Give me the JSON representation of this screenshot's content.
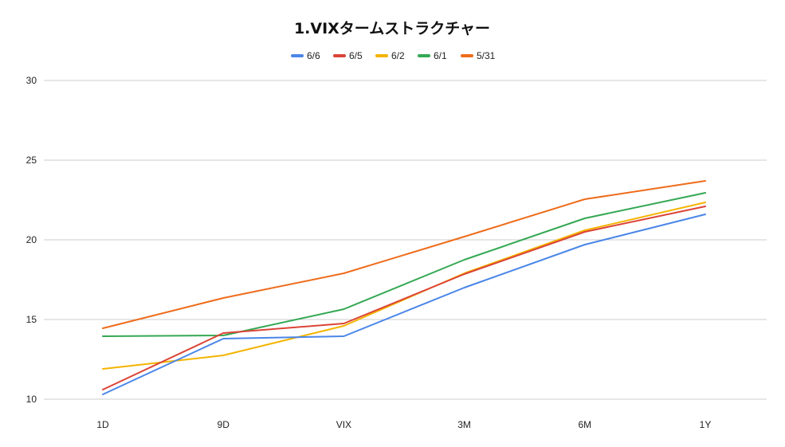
{
  "chart_data": {
    "type": "line",
    "title": "1.VIXタームストラクチャー",
    "xlabel": "",
    "ylabel": "",
    "categories": [
      "1D",
      "9D",
      "VIX",
      "3M",
      "6M",
      "1Y"
    ],
    "ylim": [
      10,
      30
    ],
    "yticks": [
      10,
      15,
      20,
      25,
      30
    ],
    "grid": true,
    "legend_position": "top-center",
    "series": [
      {
        "name": "6/6",
        "color": "#4a86e8",
        "values": [
          10.3,
          13.8,
          13.95,
          17.0,
          19.7,
          21.6
        ]
      },
      {
        "name": "6/5",
        "color": "#db4437",
        "values": [
          10.6,
          14.15,
          14.75,
          17.85,
          20.5,
          22.1
        ]
      },
      {
        "name": "6/2",
        "color": "#f4b400",
        "values": [
          11.9,
          12.75,
          14.6,
          17.9,
          20.6,
          22.35
        ]
      },
      {
        "name": "6/1",
        "color": "#34a853",
        "values": [
          13.95,
          14.0,
          15.65,
          18.75,
          21.35,
          22.95
        ]
      },
      {
        "name": "5/31",
        "color": "#ee6c1b",
        "values": [
          14.45,
          16.35,
          17.9,
          20.2,
          22.55,
          23.7
        ]
      }
    ]
  }
}
